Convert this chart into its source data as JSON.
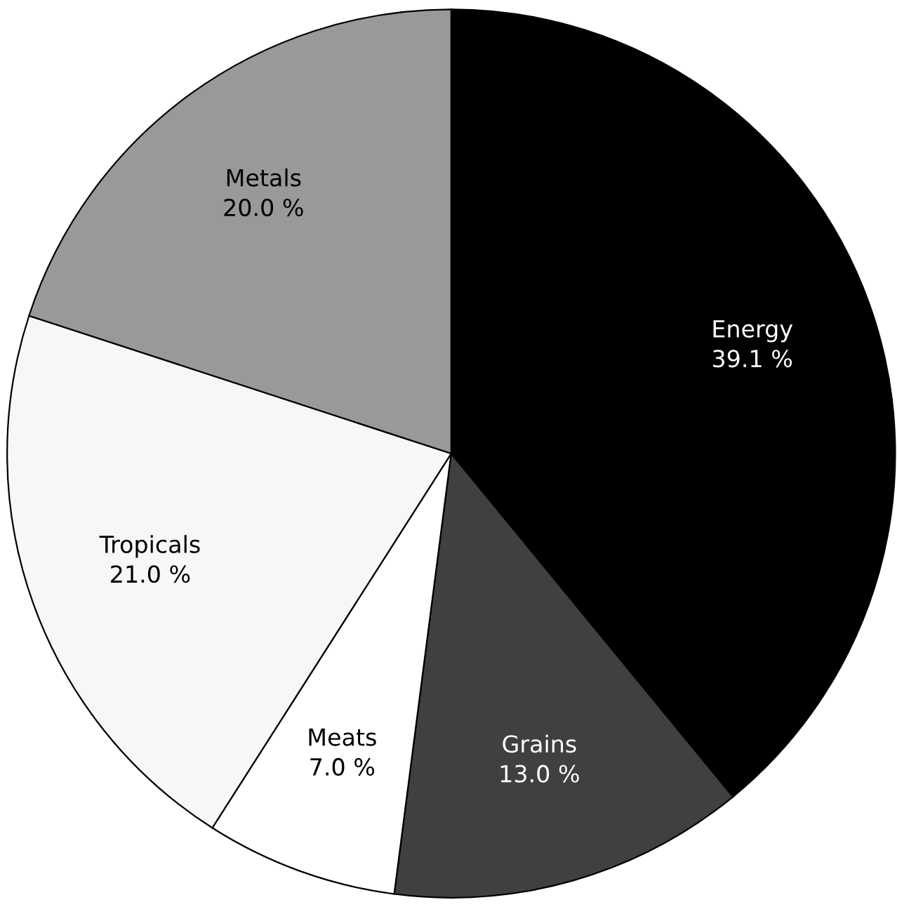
{
  "chart_data": {
    "type": "pie",
    "categories": [
      "Energy",
      "Grains",
      "Meats",
      "Tropicals",
      "Metals"
    ],
    "values": [
      39.1,
      13.0,
      7.0,
      21.0,
      20.0
    ],
    "value_labels": [
      "39.1 %",
      "13.0 %",
      "7.0 %",
      "21.0 %",
      "20.0 %"
    ],
    "colors": [
      "#000000",
      "#404040",
      "#ffffff",
      "#f7f7f7",
      "#999999"
    ],
    "legend": false
  }
}
